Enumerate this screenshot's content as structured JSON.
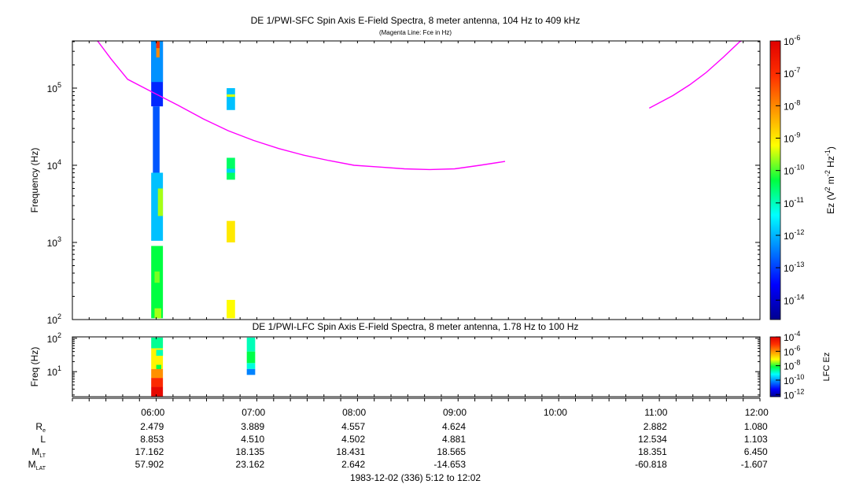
{
  "chart_data": [
    {
      "type": "heatmap",
      "title": "DE 1/PWI-SFC  Spin Axis E-Field Spectra, 8 meter antenna, 104 Hz to 409 kHz",
      "subtitle": "(Magenta Line: Fce in Hz)",
      "ylabel": "Frequency (Hz)",
      "yscale": "log",
      "ylim": [
        100,
        409000
      ],
      "yticks": [
        {
          "v": 100,
          "exp": "2"
        },
        {
          "v": 1000,
          "exp": "3"
        },
        {
          "v": 10000,
          "exp": "4"
        },
        {
          "v": 100000,
          "exp": "5"
        }
      ],
      "colorbar": {
        "label_parts": [
          "Ez (V",
          "2",
          " m",
          "-2",
          " Hz",
          "-1",
          ")"
        ],
        "exp_min": -14.6,
        "exp_max": -6,
        "ticks": [
          {
            "exp": -6,
            "label": "-6"
          },
          {
            "exp": -7,
            "label": "-7"
          },
          {
            "exp": -8,
            "label": "-8"
          },
          {
            "exp": -9,
            "label": "-9"
          },
          {
            "exp": -10,
            "label": "-10"
          },
          {
            "exp": -11,
            "label": "-11"
          },
          {
            "exp": -12,
            "label": "-12"
          },
          {
            "exp": -13,
            "label": "-13"
          },
          {
            "exp": -14,
            "label": "-14"
          }
        ]
      },
      "fce_line": {
        "color": "#ff00ff",
        "segments": [
          [
            [
              "05:27",
              409000
            ],
            [
              "05:35",
              240000
            ],
            [
              "05:45",
              130000
            ],
            [
              "06:00",
              88000
            ],
            [
              "06:15",
              60000
            ],
            [
              "06:30",
              40000
            ],
            [
              "06:45",
              28000
            ],
            [
              "07:00",
              21000
            ],
            [
              "07:15",
              16500
            ],
            [
              "07:30",
              13500
            ],
            [
              "07:45",
              11500
            ],
            [
              "08:00",
              10000
            ],
            [
              "08:15",
              9500
            ],
            [
              "08:30",
              9000
            ],
            [
              "08:45",
              8800
            ],
            [
              "09:00",
              9000
            ],
            [
              "09:15",
              10000
            ],
            [
              "09:30",
              11200
            ]
          ],
          [
            [
              "10:56",
              55000
            ],
            [
              "11:10",
              80000
            ],
            [
              "11:20",
              110000
            ],
            [
              "11:30",
              160000
            ],
            [
              "11:40",
              250000
            ],
            [
              "11:50",
              400000
            ],
            [
              "11:51",
              409000
            ]
          ]
        ]
      },
      "blocks": [
        {
          "t0": "05:59",
          "t1": "06:06",
          "f0": 58000,
          "f1": 409000,
          "exp": -13.2
        },
        {
          "t0": "05:59",
          "t1": "06:06",
          "f0": 120000,
          "f1": 409000,
          "exp": -12.3
        },
        {
          "t0": "06:02",
          "t1": "06:04",
          "f0": 250000,
          "f1": 409000,
          "exp": -8.0
        },
        {
          "t0": "06:02",
          "t1": "06:04",
          "f0": 330000,
          "f1": 400000,
          "exp": -7.0
        },
        {
          "t0": "06:00",
          "t1": "06:04",
          "f0": 8000,
          "f1": 58000,
          "exp": -12.8
        },
        {
          "t0": "05:59",
          "t1": "06:06",
          "f0": 1050,
          "f1": 8000,
          "exp": -11.9
        },
        {
          "t0": "06:03",
          "t1": "06:06",
          "f0": 2200,
          "f1": 5000,
          "exp": -9.6
        },
        {
          "t0": "05:59",
          "t1": "06:06",
          "f0": 104,
          "f1": 900,
          "exp": -10.3
        },
        {
          "t0": "06:01",
          "t1": "06:05",
          "f0": 104,
          "f1": 140,
          "exp": -9.6
        },
        {
          "t0": "06:01",
          "t1": "06:04",
          "f0": 300,
          "f1": 420,
          "exp": -9.8
        },
        {
          "t0": "06:44",
          "t1": "06:49",
          "f0": 52000,
          "f1": 100000,
          "exp": -11.9
        },
        {
          "t0": "06:44",
          "t1": "06:49",
          "f0": 77000,
          "f1": 83000,
          "exp": -9.4
        },
        {
          "t0": "06:44",
          "t1": "06:49",
          "f0": 6500,
          "f1": 12500,
          "exp": -10.5
        },
        {
          "t0": "06:44",
          "t1": "06:49",
          "f0": 8000,
          "f1": 9000,
          "exp": -11.8
        },
        {
          "t0": "06:44",
          "t1": "06:49",
          "f0": 1000,
          "f1": 1900,
          "exp": -9.0
        },
        {
          "t0": "06:44",
          "t1": "06:49",
          "f0": 104,
          "f1": 180,
          "exp": -9.2
        }
      ]
    },
    {
      "type": "heatmap",
      "title": "DE 1/PWI-LFC  Spin Axis E-Field Spectra, 8 meter antenna, 1.78 Hz to 100 Hz",
      "ylabel": "Freq (Hz)",
      "yscale": "log",
      "ylim": [
        1.78,
        110
      ],
      "yticks": [
        {
          "v": 10,
          "exp": "1"
        },
        {
          "v": 100,
          "exp": "2"
        }
      ],
      "colorbar": {
        "label": "LFC Ez",
        "exp_min": -12.3,
        "exp_max": -4,
        "ticks": [
          {
            "exp": -4,
            "label": "-4"
          },
          {
            "exp": -6,
            "label": "-6"
          },
          {
            "exp": -8,
            "label": "-8"
          },
          {
            "exp": -10,
            "label": "-10"
          },
          {
            "exp": -12,
            "label": "-12"
          }
        ]
      },
      "blocks": [
        {
          "t0": "05:59",
          "t1": "06:06",
          "f0": 50,
          "f1": 105,
          "exp": -8.6
        },
        {
          "t0": "05:59",
          "t1": "06:06",
          "f0": 12,
          "f1": 50,
          "exp": -7.0
        },
        {
          "t0": "06:02",
          "t1": "06:06",
          "f0": 30,
          "f1": 45,
          "exp": -8.8
        },
        {
          "t0": "06:02",
          "t1": "06:05",
          "f0": 10,
          "f1": 16,
          "exp": -8.2
        },
        {
          "t0": "05:59",
          "t1": "06:06",
          "f0": 6.5,
          "f1": 12,
          "exp": -6.0
        },
        {
          "t0": "05:59",
          "t1": "06:06",
          "f0": 3.5,
          "f1": 6.5,
          "exp": -4.9
        },
        {
          "t0": "05:59",
          "t1": "06:06",
          "f0": 1.78,
          "f1": 3.5,
          "exp": -4.2
        },
        {
          "t0": "06:56",
          "t1": "07:01",
          "f0": 40,
          "f1": 105,
          "exp": -8.8
        },
        {
          "t0": "06:56",
          "t1": "07:01",
          "f0": 18,
          "f1": 40,
          "exp": -8.2
        },
        {
          "t0": "06:56",
          "t1": "07:01",
          "f0": 12,
          "f1": 18,
          "exp": -9.0
        },
        {
          "t0": "06:56",
          "t1": "07:01",
          "f0": 8,
          "f1": 12,
          "exp": -10.2
        }
      ]
    }
  ],
  "time_axis": {
    "start": "05:12",
    "end": "12:02",
    "ticks": [
      "06:00",
      "07:00",
      "08:00",
      "09:00",
      "10:00",
      "11:00",
      "12:00"
    ]
  },
  "ephemeris": {
    "rows": [
      {
        "label": "R",
        "sub": "e",
        "values": [
          "2.479",
          "3.889",
          "4.557",
          "4.624",
          "",
          "2.882",
          "1.080"
        ]
      },
      {
        "label": "L",
        "sub": "",
        "values": [
          "8.853",
          "4.510",
          "4.502",
          "4.881",
          "",
          "12.534",
          "1.103"
        ]
      },
      {
        "label": "M",
        "sub": "LT",
        "values": [
          "17.162",
          "18.135",
          "18.431",
          "18.565",
          "",
          "18.351",
          "6.450"
        ]
      },
      {
        "label": "M",
        "sub": "LAT",
        "values": [
          "57.902",
          "23.162",
          "2.642",
          "-14.653",
          "",
          "-60.818",
          "-1.607"
        ]
      }
    ]
  },
  "footer": "1983-12-02 (336) 5:12 to 12:02"
}
